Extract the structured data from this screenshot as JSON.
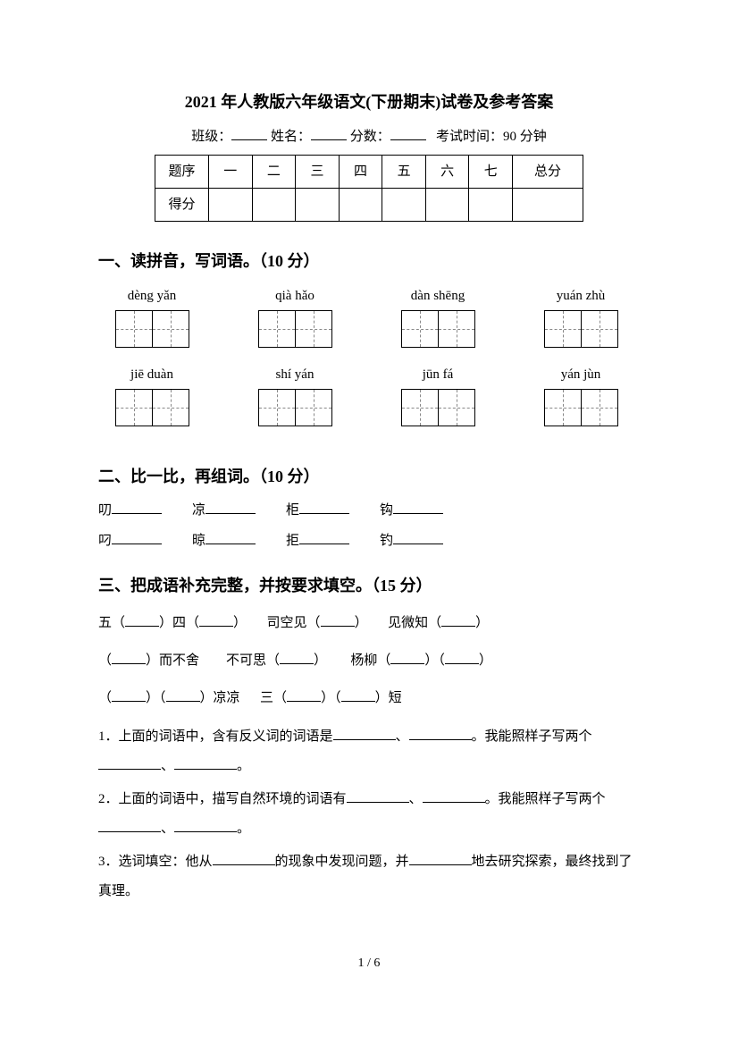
{
  "title": "2021 年人教版六年级语文(下册期末)试卷及参考答案",
  "info": {
    "class_label": "班级：",
    "name_label": "姓名：",
    "score_label": "分数：",
    "time_label": "考试时间：90 分钟"
  },
  "score_table": {
    "row1_label": "题序",
    "row2_label": "得分",
    "cols": [
      "一",
      "二",
      "三",
      "四",
      "五",
      "六",
      "七",
      "总分"
    ]
  },
  "section1": {
    "title": "一、读拼音，写词语。（10 分）",
    "items": [
      {
        "pinyin": "dèng yǎn"
      },
      {
        "pinyin": "qià hǎo"
      },
      {
        "pinyin": "dàn shēng"
      },
      {
        "pinyin": "yuán zhù"
      },
      {
        "pinyin": "jiē duàn"
      },
      {
        "pinyin": "shí yán"
      },
      {
        "pinyin": "jūn fá"
      },
      {
        "pinyin": "yán jùn"
      }
    ]
  },
  "section2": {
    "title": "二、比一比，再组词。（10 分）",
    "row1": [
      "叨",
      "凉",
      "柜",
      "钩"
    ],
    "row2": [
      "叼",
      "晾",
      "拒",
      "钓"
    ]
  },
  "section3": {
    "title": "三、把成语补充完整，并按要求填空。（15 分）",
    "line1": [
      "五（",
      "）四（",
      "）",
      "司空见（",
      "）",
      "见微知（",
      "）"
    ],
    "line2": [
      "（",
      "）而不舍",
      "不可思（",
      "）",
      "杨柳（",
      "）（",
      "）"
    ],
    "line3": [
      "（",
      "）（",
      "）凉凉",
      "三（",
      "）（",
      "）短"
    ],
    "q1": "1．上面的词语中，含有反义词的词语是",
    "q1_mid": "、",
    "q1_end": "。我能照样子写两个",
    "q1_dot": "、",
    "q1_period": "。",
    "q2": "2．上面的词语中，描写自然环境的词语有",
    "q2_mid": "、",
    "q2_end": "。我能照样子写两个",
    "q2_dot": "、",
    "q2_period": "。",
    "q3_a": "3．选词填空：他从",
    "q3_b": "的现象中发现问题，并",
    "q3_c": "地去研究探索，最终找到了真理。"
  },
  "page_num": "1 / 6"
}
